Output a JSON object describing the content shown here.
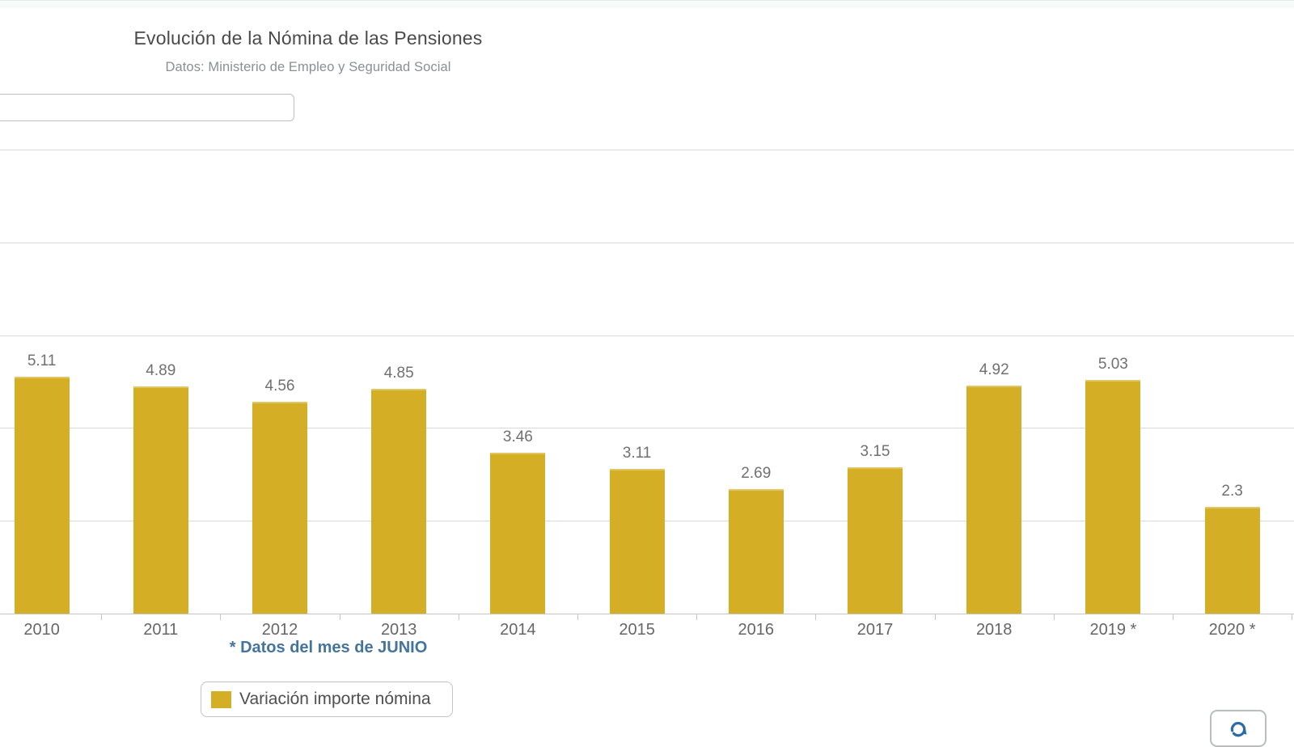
{
  "page": {
    "top_strip": true
  },
  "header": {
    "title": "Evolución de la Nómina de las Pensiones",
    "subtitle": "Datos: Ministerio de Empleo y Seguridad Social"
  },
  "filter_input": {
    "value": "",
    "placeholder": ""
  },
  "chart_data": {
    "type": "bar",
    "title": "Evolución de la Nómina de las Pensiones",
    "subtitle": "Datos: Ministerio de Empleo y Seguridad Social",
    "categories": [
      "2010",
      "2011",
      "2012",
      "2013",
      "2014",
      "2015",
      "2016",
      "2017",
      "2018",
      "2019 *",
      "2020 *"
    ],
    "series": [
      {
        "name": "Variación importe nómina",
        "values": [
          5.11,
          4.89,
          4.56,
          4.85,
          3.46,
          3.11,
          2.69,
          3.15,
          4.92,
          5.03,
          2.3
        ]
      }
    ],
    "data_labels_visible": true,
    "xlabel": "",
    "ylabel": "",
    "ylim": [
      0,
      10
    ],
    "ytick_step": 2,
    "y_tick_labels_visible": false,
    "grid": true,
    "legend_position": "bottom",
    "bar_color": "#d4af26",
    "footnote": "* Datos del mes de JUNIO"
  },
  "legend": {
    "label": "Variación importe nómina",
    "swatch_color": "#d4af26"
  },
  "footnote": {
    "text": "* Datos del mes de JUNIO"
  },
  "toolbar": {
    "refresh_icon": "refresh-icon",
    "refresh_icon_color": "#2e6da4"
  },
  "colors": {
    "bar": "#d4af26",
    "grid": "#d9d9d9",
    "axis": "#c6c6c6",
    "title": "#4a4a4a",
    "subtitle": "#8b8f92",
    "data_label": "#707070",
    "x_label": "#666666",
    "footnote_blue": "#44749e"
  }
}
